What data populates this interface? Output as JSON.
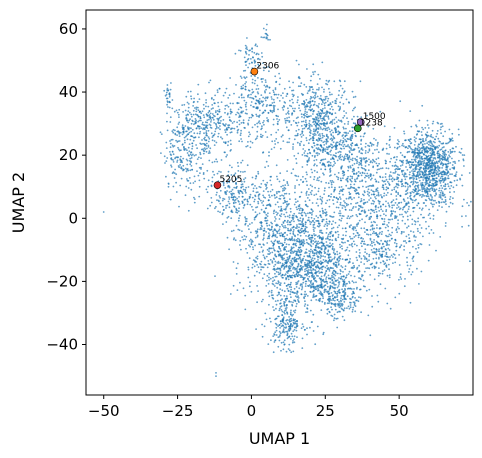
{
  "chart_data": {
    "type": "scatter",
    "title": "",
    "xlabel": "UMAP 1",
    "ylabel": "UMAP 2",
    "xlim": [
      -56,
      75
    ],
    "ylim": [
      -56,
      66
    ],
    "xticks": [
      -50,
      -25,
      0,
      25,
      50
    ],
    "yticks": [
      -40,
      -20,
      0,
      20,
      40,
      60
    ],
    "xtick_labels": [
      "−50",
      "−25",
      "0",
      "25",
      "50"
    ],
    "ytick_labels": [
      "−40",
      "−20",
      "0",
      "20",
      "40",
      "60"
    ],
    "grid": false,
    "legend": false,
    "background_series": {
      "color": "#1f77b4",
      "approx_points": 6000,
      "clusters": [
        {
          "cx": 60,
          "cy": 16,
          "sx": 5,
          "sy": 6,
          "n": 900
        },
        {
          "cx": 40,
          "cy": 8,
          "sx": 12,
          "sy": 10,
          "n": 900
        },
        {
          "cx": 10,
          "cy": -5,
          "sx": 8,
          "sy": 10,
          "n": 700
        },
        {
          "cx": 20,
          "cy": -18,
          "sx": 7,
          "sy": 6,
          "n": 450
        },
        {
          "cx": 12,
          "cy": -33,
          "sx": 3,
          "sy": 4,
          "n": 200
        },
        {
          "cx": 30,
          "cy": -25,
          "sx": 4,
          "sy": 4,
          "n": 200
        },
        {
          "cx": -15,
          "cy": 30,
          "sx": 6,
          "sy": 5,
          "n": 350
        },
        {
          "cx": -22,
          "cy": 20,
          "sx": 4,
          "sy": 6,
          "n": 200
        },
        {
          "cx": 2,
          "cy": 35,
          "sx": 5,
          "sy": 6,
          "n": 250
        },
        {
          "cx": 22,
          "cy": 33,
          "sx": 6,
          "sy": 6,
          "n": 450
        },
        {
          "cx": 28,
          "cy": 22,
          "sx": 6,
          "sy": 5,
          "n": 300
        },
        {
          "cx": 0,
          "cy": 50,
          "sx": 2,
          "sy": 3,
          "n": 60
        },
        {
          "cx": -5,
          "cy": 8,
          "sx": 5,
          "sy": 4,
          "n": 200
        },
        {
          "cx": -28,
          "cy": 38,
          "sx": 0.5,
          "sy": 2,
          "n": 25
        },
        {
          "cx": 20,
          "cy": -10,
          "sx": 8,
          "sy": 8,
          "n": 400
        },
        {
          "cx": 45,
          "cy": -10,
          "sx": 6,
          "sy": 6,
          "n": 250
        },
        {
          "cx": 5,
          "cy": 58,
          "sx": 1,
          "sy": 1.5,
          "n": 15
        }
      ],
      "outliers": [
        {
          "x": -50,
          "y": 2
        },
        {
          "x": -12,
          "y": -49
        },
        {
          "x": -12,
          "y": -50
        },
        {
          "x": -7,
          "y": -24
        },
        {
          "x": 10,
          "y": -42
        },
        {
          "x": 46,
          "y": -27
        }
      ]
    },
    "highlighted_points": [
      {
        "label": "2306",
        "x": 1,
        "y": 46.5,
        "color": "#ff7f0e"
      },
      {
        "label": "1500",
        "x": 37,
        "y": 30.5,
        "color": "#9467bd"
      },
      {
        "label": "1238",
        "x": 36,
        "y": 28.5,
        "color": "#2ca02c"
      },
      {
        "label": "5205",
        "x": -11.5,
        "y": 10.5,
        "color": "#d62728"
      }
    ]
  }
}
